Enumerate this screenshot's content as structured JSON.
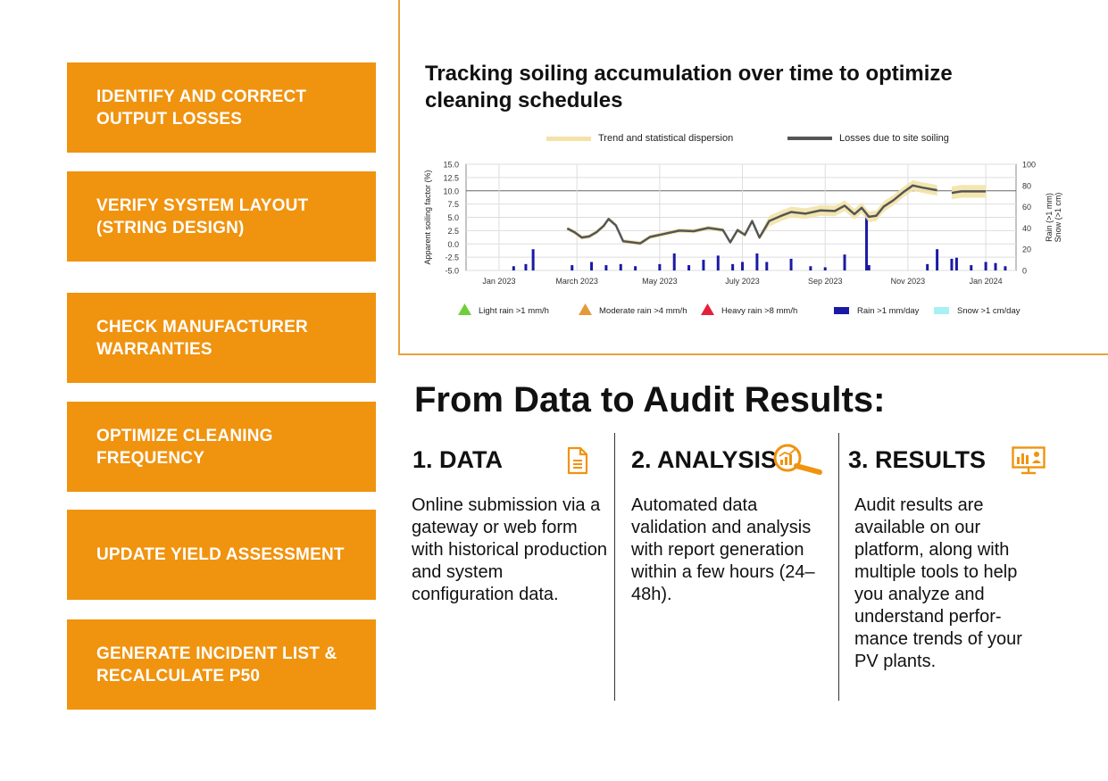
{
  "sidebar": {
    "buttons": [
      {
        "label": "IDENTIFY AND CORRECT\nOUTPUT LOSSES"
      },
      {
        "label": "VERIFY SYSTEM LAYOUT\n(STRING DESIGN)"
      },
      {
        "label": "CHECK MANUFACTURER\nWARRANTIES"
      },
      {
        "label": "OPTIMIZE CLEANING\nFREQUENCY"
      },
      {
        "label": "UPDATE YIELD ASSESSMENT"
      },
      {
        "label": "GENERATE INCIDENT LIST &\nRECALCULATE P50"
      }
    ]
  },
  "chart_section": {
    "title": "Tracking soiling accumulation over time to optimize cleaning schedules"
  },
  "chart_data": {
    "type": "line",
    "legend_top": [
      "Trend and statistical dispersion",
      "Losses due to site soiling"
    ],
    "legend_bottom": [
      "Light rain >1 mm/h",
      "Moderate rain >4 mm/h",
      "Heavy rain >8 mm/h",
      "Rain >1 mm/day",
      "Snow >1 cm/day"
    ],
    "ylabel": "Apparent soiling factor (%)",
    "y2label_1": "Rain (>1 mm)",
    "y2label_2": "Snow (>1 cm)",
    "yticks": [
      "15.0",
      "12.5",
      "10.0",
      "7.5",
      "5.0",
      "2.5",
      "0.0",
      "-2.5",
      "-5.0"
    ],
    "y2ticks": [
      "100",
      "80",
      "60",
      "40",
      "20",
      "0"
    ],
    "xticks": [
      "Jan 2023",
      "March 2023",
      "May 2023",
      "July 2023",
      "Sep 2023",
      "Nov 2023",
      "Jan 2024"
    ],
    "ylim": [
      -5,
      15
    ],
    "y2lim": [
      0,
      100
    ],
    "colors": {
      "trend": "#F3E3A8",
      "loss": "#555555",
      "rain": "#1A1AA6",
      "light": "#6ECF3A",
      "moderate": "#E39A3B",
      "heavy": "#E5203A",
      "snow": "#A8F0F4"
    },
    "loss_series": [
      {
        "x": 0.14,
        "y": 2.9
      },
      {
        "x": 0.155,
        "y": 2.2
      },
      {
        "x": 0.17,
        "y": 1.2
      },
      {
        "x": 0.185,
        "y": 1.4
      },
      {
        "x": 0.2,
        "y": 2.2
      },
      {
        "x": 0.215,
        "y": 3.4
      },
      {
        "x": 0.225,
        "y": 4.7
      },
      {
        "x": 0.24,
        "y": 3.5
      },
      {
        "x": 0.255,
        "y": 0.5
      },
      {
        "x": 0.29,
        "y": 0.1
      },
      {
        "x": 0.31,
        "y": 1.3
      },
      {
        "x": 0.34,
        "y": 1.9
      },
      {
        "x": 0.37,
        "y": 2.5
      },
      {
        "x": 0.4,
        "y": 2.4
      },
      {
        "x": 0.43,
        "y": 3.0
      },
      {
        "x": 0.46,
        "y": 2.6
      },
      {
        "x": 0.475,
        "y": 0.3
      },
      {
        "x": 0.49,
        "y": 2.6
      },
      {
        "x": 0.505,
        "y": 1.7
      },
      {
        "x": 0.52,
        "y": 4.3
      },
      {
        "x": 0.535,
        "y": 1.2
      },
      {
        "x": 0.555,
        "y": 4.3
      },
      {
        "x": 0.58,
        "y": 5.3
      },
      {
        "x": 0.6,
        "y": 6.0
      },
      {
        "x": 0.63,
        "y": 5.7
      },
      {
        "x": 0.66,
        "y": 6.3
      },
      {
        "x": 0.69,
        "y": 6.2
      },
      {
        "x": 0.71,
        "y": 7.2
      },
      {
        "x": 0.73,
        "y": 5.6
      },
      {
        "x": 0.745,
        "y": 6.8
      },
      {
        "x": 0.76,
        "y": 5.1
      },
      {
        "x": 0.775,
        "y": 5.3
      },
      {
        "x": 0.79,
        "y": 7.0
      },
      {
        "x": 0.81,
        "y": 8.2
      },
      {
        "x": 0.83,
        "y": 9.7
      },
      {
        "x": 0.85,
        "y": 11.0
      },
      {
        "x": 0.87,
        "y": 10.6
      },
      {
        "x": 0.9,
        "y": 10.1
      }
    ],
    "loss_series_2": [
      {
        "x": 0.93,
        "y": 9.6
      },
      {
        "x": 0.95,
        "y": 9.9
      },
      {
        "x": 1.0,
        "y": 9.9
      }
    ],
    "rain_events": [
      {
        "x": 0.03,
        "mm": 4
      },
      {
        "x": 0.055,
        "mm": 6
      },
      {
        "x": 0.07,
        "mm": 20
      },
      {
        "x": 0.15,
        "mm": 5
      },
      {
        "x": 0.19,
        "mm": 8
      },
      {
        "x": 0.22,
        "mm": 5
      },
      {
        "x": 0.25,
        "mm": 6
      },
      {
        "x": 0.28,
        "mm": 4
      },
      {
        "x": 0.33,
        "mm": 6
      },
      {
        "x": 0.36,
        "mm": 16
      },
      {
        "x": 0.39,
        "mm": 5
      },
      {
        "x": 0.42,
        "mm": 10
      },
      {
        "x": 0.45,
        "mm": 14
      },
      {
        "x": 0.48,
        "mm": 6
      },
      {
        "x": 0.5,
        "mm": 8
      },
      {
        "x": 0.53,
        "mm": 16
      },
      {
        "x": 0.55,
        "mm": 8
      },
      {
        "x": 0.6,
        "mm": 11
      },
      {
        "x": 0.64,
        "mm": 4
      },
      {
        "x": 0.67,
        "mm": 3
      },
      {
        "x": 0.71,
        "mm": 15
      },
      {
        "x": 0.755,
        "mm": 52
      },
      {
        "x": 0.76,
        "mm": 5
      },
      {
        "x": 0.88,
        "mm": 6
      },
      {
        "x": 0.9,
        "mm": 20
      },
      {
        "x": 0.93,
        "mm": 11
      },
      {
        "x": 0.94,
        "mm": 12
      },
      {
        "x": 0.97,
        "mm": 5
      },
      {
        "x": 1.0,
        "mm": 8
      },
      {
        "x": 1.02,
        "mm": 7
      },
      {
        "x": 1.04,
        "mm": 4
      }
    ]
  },
  "process": {
    "title": "From Data to Audit Results:",
    "columns": [
      {
        "heading": "1. DATA",
        "icon": "document-icon",
        "text": "Online submission via a gateway or web form with historical production and system configuration data."
      },
      {
        "heading": "2. ANALYSIS",
        "icon": "magnifier-chart-icon",
        "text": "Automated data validation and analysis with report generation within a few hours (24–48h)."
      },
      {
        "heading": "3. RESULTS",
        "icon": "monitor-dashboard-icon",
        "text": "Audit results are available on our platform, along with multiple tools to help you analyze and understand perfor-mance trends of your PV plants."
      }
    ]
  }
}
